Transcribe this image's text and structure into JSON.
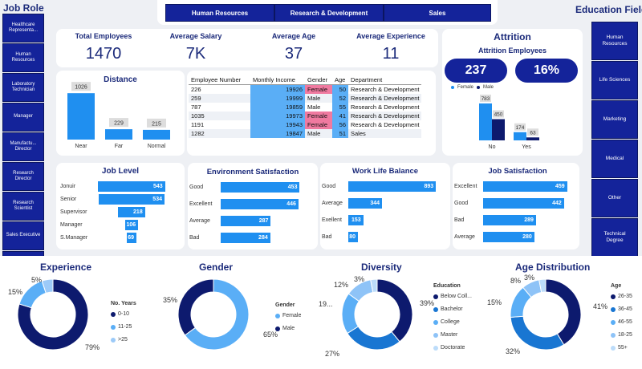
{
  "colors": {
    "navy": "#14239a",
    "dark_navy": "#0d1a6e",
    "blue": "#1f8ff0",
    "mid_blue": "#1976d2",
    "light_blue": "#5aaef6",
    "pale_blue": "#9ccaf8",
    "pink": "#f07aa0"
  },
  "job_role": {
    "title": "Job Role",
    "items": [
      "Healthcare Representa...",
      "Human Resources",
      "Laboratory Technician",
      "Manager",
      "Manufactu... Director",
      "Research Director",
      "Research Scientist",
      "Sales Executive",
      "Sales Representa..."
    ]
  },
  "department_tabs": [
    "Human Resources",
    "Research & Development",
    "Sales"
  ],
  "education_field": {
    "title": "Education Field",
    "items": [
      "Human Resources",
      "Life Sciences",
      "Marketing",
      "Medical",
      "Other",
      "Technical Degree"
    ]
  },
  "kpis": [
    {
      "label": "Total Employees",
      "value": "1470"
    },
    {
      "label": "Average Salary",
      "value": "7K"
    },
    {
      "label": "Average Age",
      "value": "37"
    },
    {
      "label": "Average Experience",
      "value": "11"
    }
  ],
  "attrition": {
    "title": "Attrition",
    "subtitle": "Attrition Employees",
    "count": "237",
    "rate": "16%",
    "legend": [
      "Female",
      "Male"
    ]
  },
  "table": {
    "headers": [
      "Employee Number",
      "Monthly Income",
      "Gender",
      "Age",
      "Department"
    ],
    "rows": [
      [
        "226",
        "19926",
        "Female",
        "50",
        "Research & Development"
      ],
      [
        "259",
        "19999",
        "Male",
        "52",
        "Research & Development"
      ],
      [
        "787",
        "19859",
        "Male",
        "55",
        "Research & Development"
      ],
      [
        "1035",
        "19973",
        "Female",
        "41",
        "Research & Development"
      ],
      [
        "1191",
        "19943",
        "Female",
        "56",
        "Research & Development"
      ],
      [
        "1282",
        "19847",
        "Male",
        "51",
        "Sales"
      ]
    ]
  },
  "chart_data": [
    {
      "id": "distance",
      "type": "bar",
      "title": "Distance",
      "categories": [
        "Near",
        "Far",
        "Normal"
      ],
      "values": [
        1026,
        229,
        215
      ],
      "ylim": [
        0,
        1100
      ]
    },
    {
      "id": "attrition",
      "type": "bar",
      "title": "Attrition Employees",
      "categories": [
        "No",
        "Yes"
      ],
      "series": [
        {
          "name": "Female",
          "values": [
            783,
            174
          ]
        },
        {
          "name": "Male",
          "values": [
            450,
            63
          ]
        }
      ],
      "ylim": [
        0,
        850
      ]
    },
    {
      "id": "job_level",
      "type": "bar",
      "orientation": "horizontal",
      "title": "Job Level",
      "categories": [
        "Jonuir",
        "Senior",
        "Supervisor",
        "Manager",
        "S.Manager"
      ],
      "values": [
        543,
        534,
        218,
        106,
        69
      ],
      "xlim": [
        0,
        560
      ]
    },
    {
      "id": "environment",
      "type": "bar",
      "orientation": "horizontal",
      "title": "Environment Satisfaction",
      "categories": [
        "Good",
        "Excellent",
        "Average",
        "Bad"
      ],
      "values": [
        453,
        446,
        287,
        284
      ],
      "xlim": [
        0,
        460
      ]
    },
    {
      "id": "work_life",
      "type": "bar",
      "orientation": "horizontal",
      "title": "Work Life Balance",
      "categories": [
        "Good",
        "Average",
        "Exellent",
        "Bad"
      ],
      "values": [
        893,
        344,
        153,
        80
      ],
      "xlim": [
        0,
        900
      ]
    },
    {
      "id": "job_satisfaction",
      "type": "bar",
      "orientation": "horizontal",
      "title": "Job Satisfaction",
      "categories": [
        "Excellent",
        "Good",
        "Bad",
        "Average"
      ],
      "values": [
        459,
        442,
        289,
        280
      ],
      "xlim": [
        0,
        465
      ]
    },
    {
      "id": "experience",
      "type": "pie",
      "donut": true,
      "title": "Experience",
      "legend_title": "No. Years",
      "categories": [
        "0-10",
        "11-25",
        ">25"
      ],
      "values": [
        79,
        15,
        5
      ],
      "labels": [
        "79%",
        "15%",
        "5%"
      ]
    },
    {
      "id": "gender",
      "type": "pie",
      "donut": true,
      "title": "Gender",
      "legend_title": "Gender",
      "categories": [
        "Female",
        "Male"
      ],
      "values": [
        65,
        35
      ],
      "labels": [
        "65%",
        "35%"
      ]
    },
    {
      "id": "diversity",
      "type": "pie",
      "donut": true,
      "title": "Diversity",
      "legend_title": "Education",
      "categories": [
        "Below Coll...",
        "Bachelor",
        "College",
        "Master",
        "Doctorate"
      ],
      "values": [
        39,
        27,
        19,
        12,
        3
      ],
      "labels": [
        "39%",
        "27%",
        "19...",
        "12%",
        "3%"
      ]
    },
    {
      "id": "age",
      "type": "pie",
      "donut": true,
      "title": "Age Distribution",
      "legend_title": "Age",
      "categories": [
        "26-35",
        "36-45",
        "46-55",
        "18-25",
        "55+"
      ],
      "values": [
        41,
        32,
        15,
        8,
        3
      ],
      "labels": [
        "41%",
        "32%",
        "15%",
        "8%",
        "3%"
      ]
    }
  ]
}
